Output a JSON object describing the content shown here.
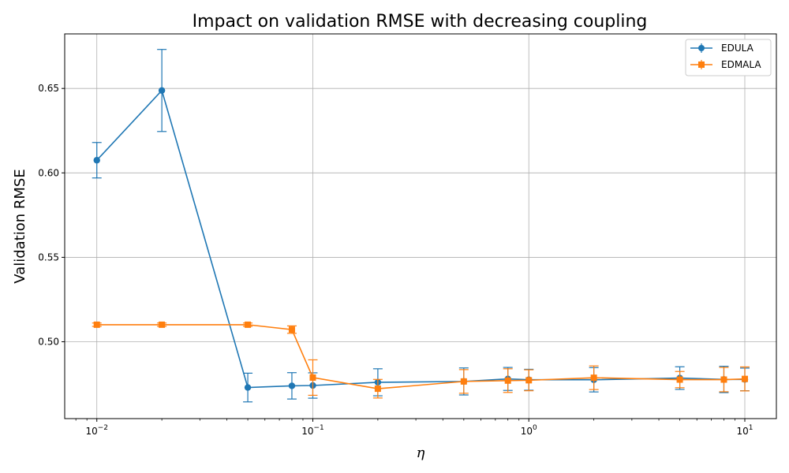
{
  "chart_data": {
    "type": "line",
    "title": "Impact on validation RMSE with decreasing coupling",
    "xlabel": "η",
    "ylabel": "Validation RMSE",
    "xscale": "log",
    "xlim": [
      0.0071,
      14
    ],
    "ylim": [
      0.4545,
      0.6823
    ],
    "grid": true,
    "legend_position": "top-right",
    "x_ticks": [
      {
        "value": 0.01,
        "base": "10",
        "exp": "−2"
      },
      {
        "value": 0.1,
        "base": "10",
        "exp": "−1"
      },
      {
        "value": 1,
        "base": "10",
        "exp": "0"
      },
      {
        "value": 10,
        "base": "10",
        "exp": "1"
      }
    ],
    "y_ticks": [
      {
        "value": 0.5,
        "label": "0.50"
      },
      {
        "value": 0.55,
        "label": "0.55"
      },
      {
        "value": 0.6,
        "label": "0.60"
      },
      {
        "value": 0.65,
        "label": "0.65"
      }
    ],
    "series": [
      {
        "name": "EDULA",
        "color": "#1f77b4",
        "marker": "circle",
        "x": [
          0.01,
          0.02,
          0.05,
          0.08,
          0.1,
          0.2,
          0.5,
          0.8,
          1,
          2,
          5,
          8,
          10
        ],
        "y": [
          0.6075,
          0.6488,
          0.4729,
          0.4739,
          0.4741,
          0.476,
          0.4765,
          0.478,
          0.4775,
          0.4775,
          0.4785,
          0.4777,
          0.4777
        ],
        "err": [
          0.0105,
          0.0243,
          0.0085,
          0.0078,
          0.0075,
          0.008,
          0.008,
          0.0068,
          0.0062,
          0.0072,
          0.0067,
          0.0078,
          0.0067
        ]
      },
      {
        "name": "EDMALA",
        "color": "#ff7f0e",
        "marker": "square",
        "x": [
          0.01,
          0.02,
          0.05,
          0.08,
          0.1,
          0.2,
          0.5,
          0.8,
          1,
          2,
          5,
          8,
          10
        ],
        "y": [
          0.5101,
          0.5101,
          0.5101,
          0.5072,
          0.4788,
          0.4722,
          0.4765,
          0.477,
          0.4772,
          0.4787,
          0.4776,
          0.4776,
          0.478
        ],
        "err": [
          0.001,
          0.001,
          0.001,
          0.0022,
          0.0105,
          0.0055,
          0.007,
          0.007,
          0.0062,
          0.007,
          0.0048,
          0.0072,
          0.0071
        ]
      }
    ]
  }
}
